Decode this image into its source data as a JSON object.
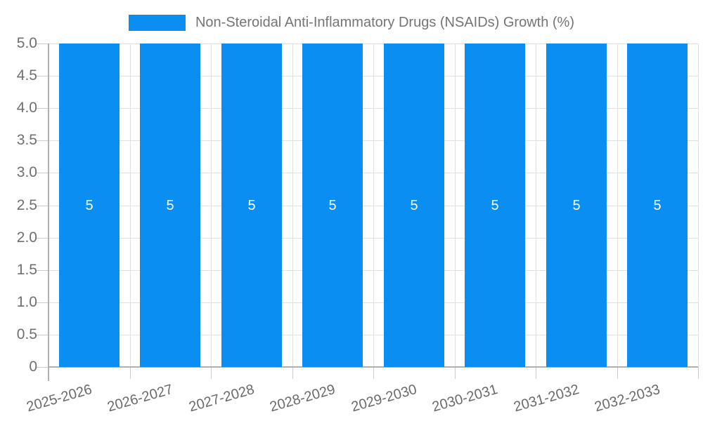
{
  "legend": {
    "label": "Non-Steroidal Anti-Inflammatory Drugs (NSAIDs) Growth (%)",
    "swatch_color": "#0a8ef1"
  },
  "chart_data": {
    "type": "bar",
    "title": "Non-Steroidal Anti-Inflammatory Drugs (NSAIDs) Growth (%)",
    "categories": [
      "2025-2026",
      "2026-2027",
      "2027-2028",
      "2028-2029",
      "2029-2030",
      "2030-2031",
      "2031-2032",
      "2032-2033"
    ],
    "values": [
      5,
      5,
      5,
      5,
      5,
      5,
      5,
      5
    ],
    "bar_labels": [
      "5",
      "5",
      "5",
      "5",
      "5",
      "5",
      "5",
      "5"
    ],
    "xlabel": "",
    "ylabel": "",
    "ylim": [
      0,
      5
    ],
    "ytick_step": 0.5,
    "ytick_labels": [
      "0",
      "0.5",
      "1.0",
      "1.5",
      "2.0",
      "2.5",
      "3.0",
      "3.5",
      "4.0",
      "4.5",
      "5.0"
    ],
    "grid": true,
    "legend_position": "top",
    "colors": {
      "bar": "#0a8ef1",
      "gridline": "#e0e0e0",
      "tick": "#cccccc",
      "axis": "#b0b0b0",
      "tick_label": "#6f6f6f",
      "value_label": "#ffffff",
      "legend_text": "#757575"
    }
  }
}
